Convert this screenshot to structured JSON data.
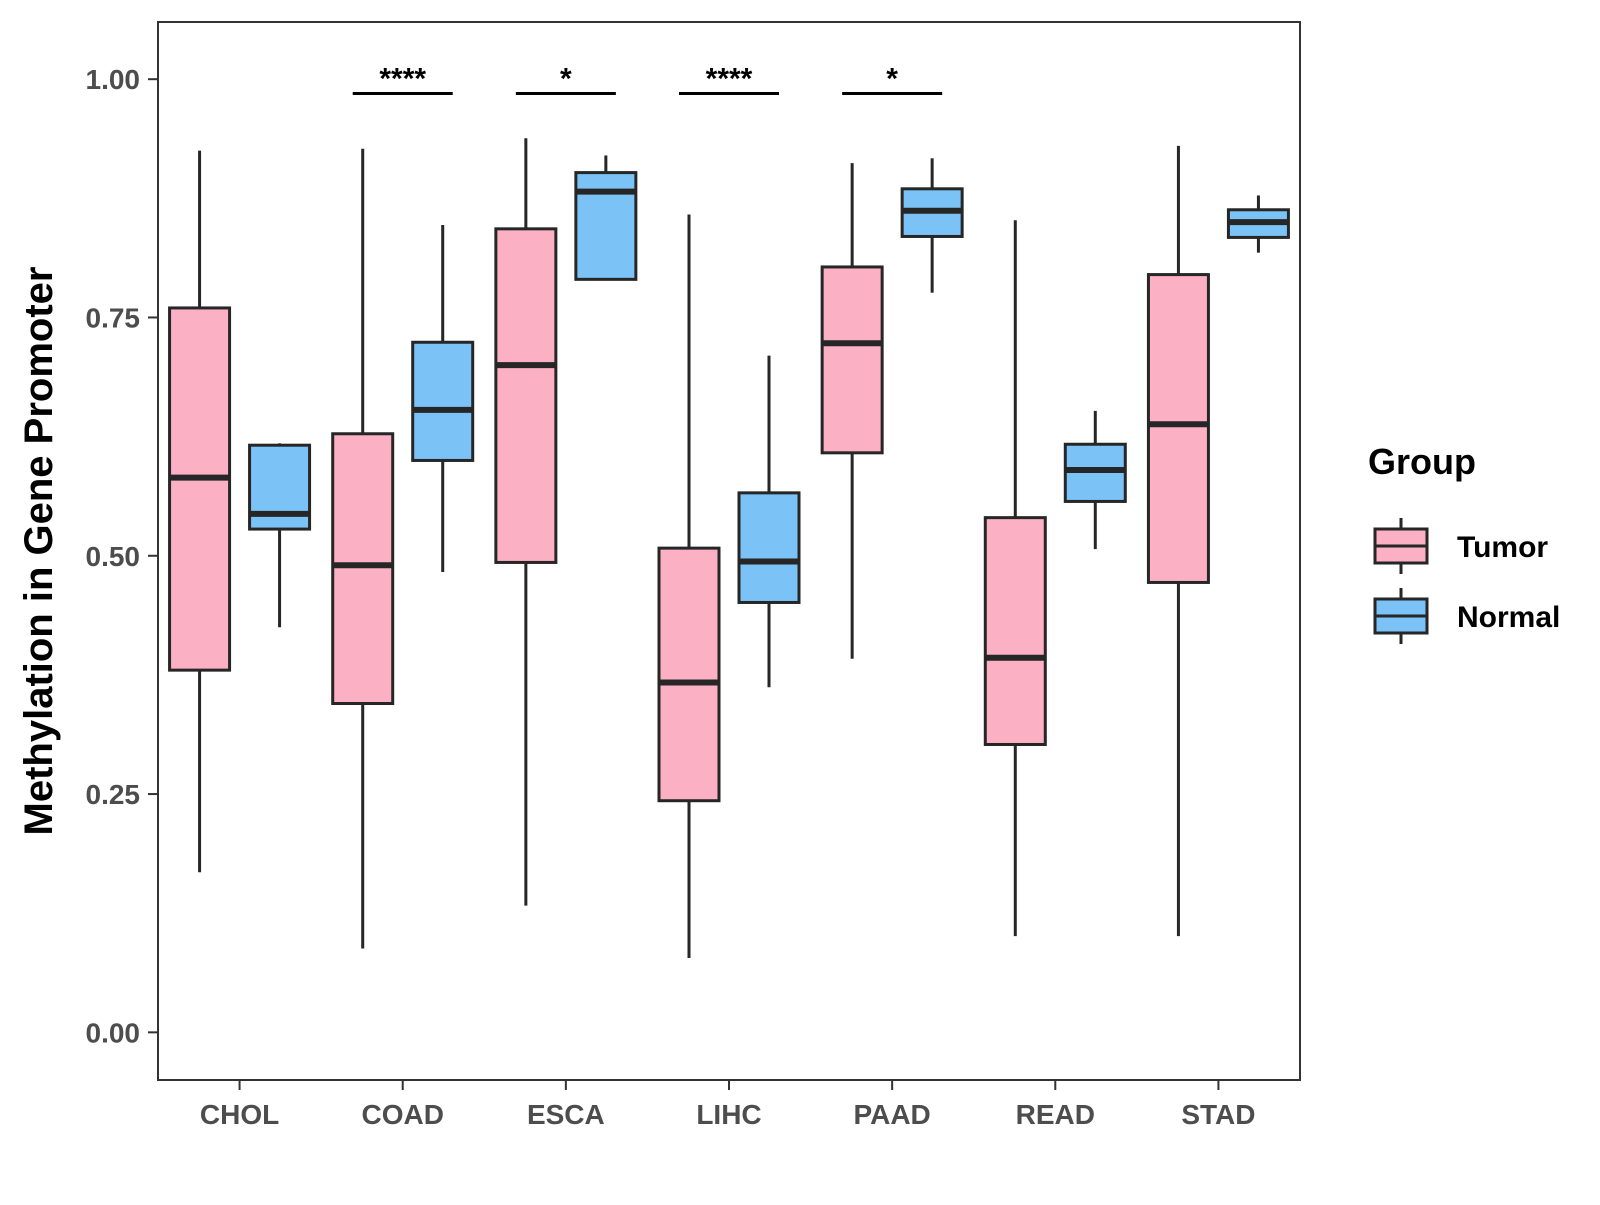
{
  "chart_data": {
    "type": "box",
    "title": "",
    "xlabel": "",
    "ylabel": "Methylation in Gene Promoter",
    "ylim": [
      -0.05,
      1.06
    ],
    "yticks": [
      "0.00",
      "0.25",
      "0.50",
      "0.75",
      "1.00"
    ],
    "ytick_values": [
      0,
      0.25,
      0.5,
      0.75,
      1.0
    ],
    "categories": [
      "CHOL",
      "COAD",
      "ESCA",
      "LIHC",
      "PAAD",
      "READ",
      "STAD"
    ],
    "legend": {
      "title": "Group",
      "position": "right",
      "entries": [
        "Tumor",
        "Normal"
      ]
    },
    "colors": {
      "Tumor": "#fbb0c3",
      "Normal": "#7bc2f7",
      "stroke": "#262626",
      "axis": "#333333",
      "tick_text": "#4d4d4d"
    },
    "series": [
      {
        "name": "Tumor",
        "boxes": [
          {
            "min": 0.168,
            "q1": 0.38,
            "median": 0.582,
            "q3": 0.76,
            "max": 0.925
          },
          {
            "min": 0.088,
            "q1": 0.345,
            "median": 0.49,
            "q3": 0.628,
            "max": 0.927
          },
          {
            "min": 0.133,
            "q1": 0.493,
            "median": 0.7,
            "q3": 0.843,
            "max": 0.938
          },
          {
            "min": 0.078,
            "q1": 0.243,
            "median": 0.367,
            "q3": 0.508,
            "max": 0.858
          },
          {
            "min": 0.392,
            "q1": 0.608,
            "median": 0.723,
            "q3": 0.803,
            "max": 0.912
          },
          {
            "min": 0.101,
            "q1": 0.302,
            "median": 0.393,
            "q3": 0.54,
            "max": 0.852
          },
          {
            "min": 0.101,
            "q1": 0.472,
            "median": 0.638,
            "q3": 0.795,
            "max": 0.93
          }
        ]
      },
      {
        "name": "Normal",
        "boxes": [
          {
            "min": 0.425,
            "q1": 0.528,
            "median": 0.544,
            "q3": 0.616,
            "max": 0.618
          },
          {
            "min": 0.483,
            "q1": 0.6,
            "median": 0.653,
            "q3": 0.724,
            "max": 0.847
          },
          {
            "min": 0.79,
            "q1": 0.79,
            "median": 0.882,
            "q3": 0.902,
            "max": 0.92
          },
          {
            "min": 0.362,
            "q1": 0.451,
            "median": 0.494,
            "q3": 0.566,
            "max": 0.71
          },
          {
            "min": 0.776,
            "q1": 0.835,
            "median": 0.862,
            "q3": 0.885,
            "max": 0.917
          },
          {
            "min": 0.507,
            "q1": 0.557,
            "median": 0.59,
            "q3": 0.617,
            "max": 0.652
          },
          {
            "min": 0.818,
            "q1": 0.834,
            "median": 0.85,
            "q3": 0.863,
            "max": 0.878
          }
        ]
      }
    ],
    "annotations": [
      {
        "category": "COAD",
        "label": "****",
        "y": 0.985
      },
      {
        "category": "ESCA",
        "label": "*",
        "y": 0.985
      },
      {
        "category": "LIHC",
        "label": "****",
        "y": 0.985
      },
      {
        "category": "PAAD",
        "label": "*",
        "y": 0.985
      }
    ]
  }
}
